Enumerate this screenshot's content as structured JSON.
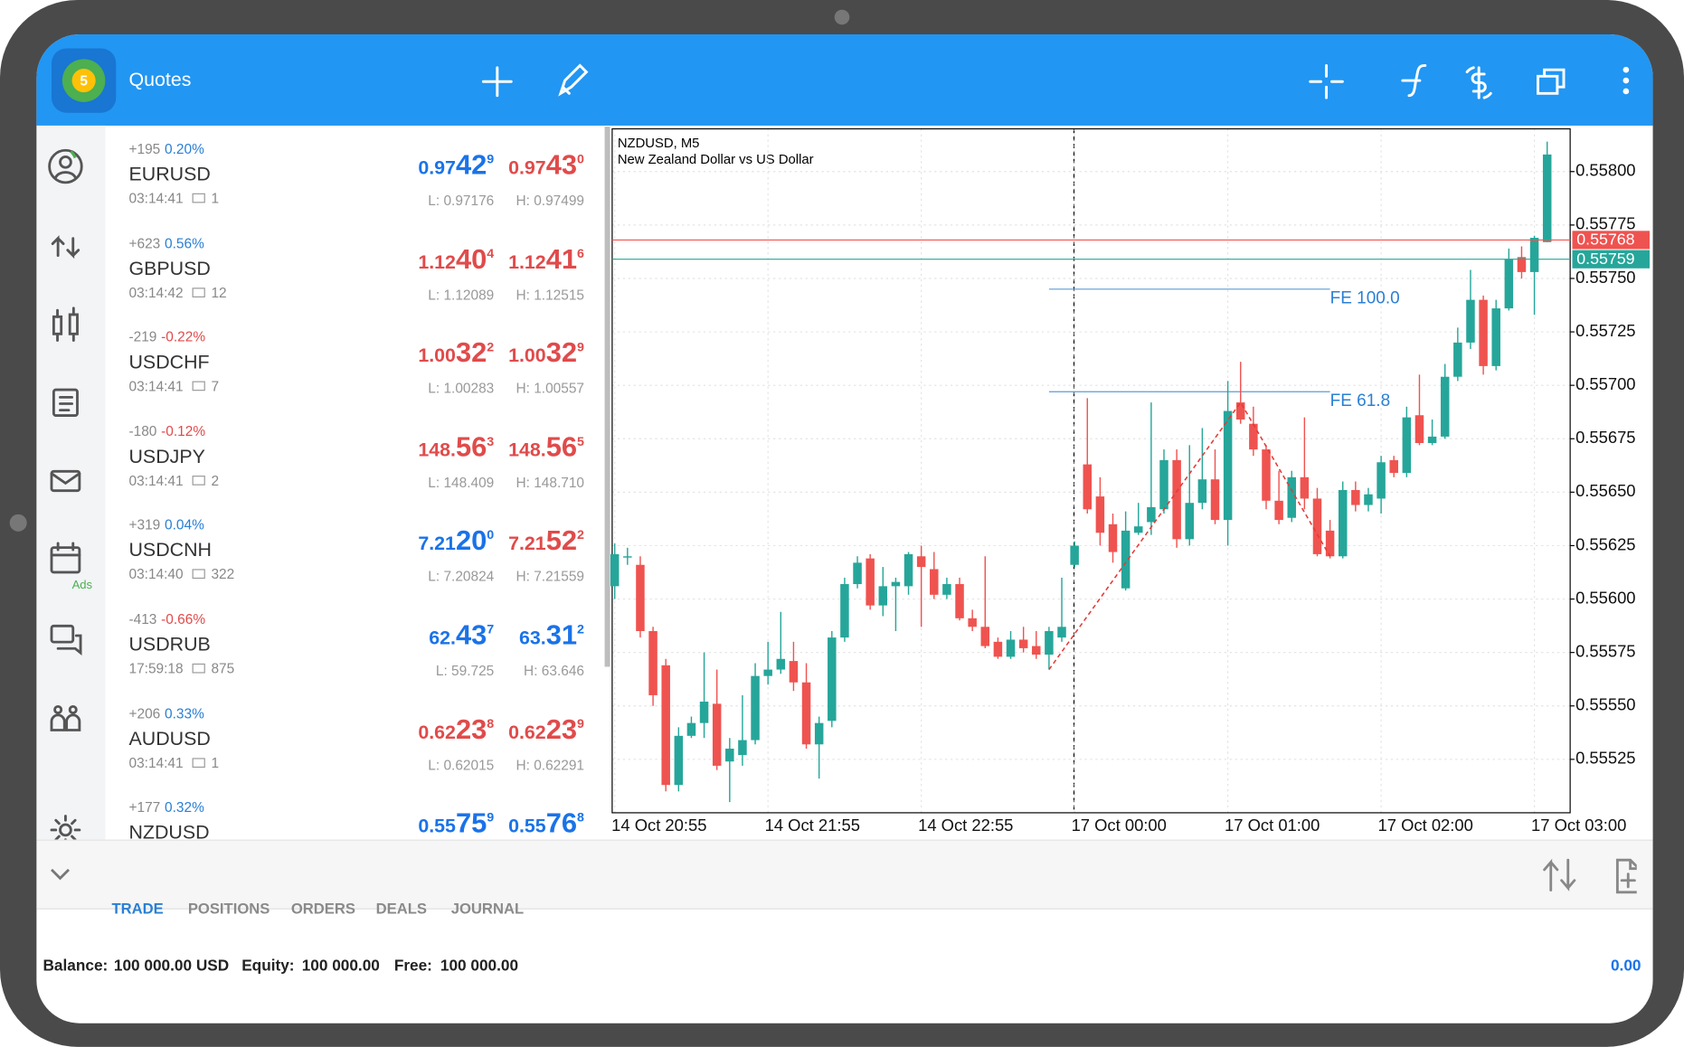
{
  "header": {
    "title": "Quotes"
  },
  "sidebar": {
    "ads": "Ads"
  },
  "quotes": [
    {
      "change_points": "+195",
      "change_percent": "0.20%",
      "change_color": "#2a7fd4",
      "symbol": "EURUSD",
      "time": "03:14:41",
      "ticks": "1",
      "bid": {
        "head": "0.97",
        "big": "42",
        "tail": "9",
        "color": "#1a73e8"
      },
      "ask": {
        "head": "0.97",
        "big": "43",
        "tail": "0",
        "color": "#e04b4b"
      },
      "low": "L: 0.97176",
      "high": "H: 0.97499"
    },
    {
      "change_points": "+623",
      "change_percent": "0.56%",
      "change_color": "#2a7fd4",
      "symbol": "GBPUSD",
      "time": "03:14:42",
      "ticks": "12",
      "bid": {
        "head": "1.12",
        "big": "40",
        "tail": "4",
        "color": "#e04b4b"
      },
      "ask": {
        "head": "1.12",
        "big": "41",
        "tail": "6",
        "color": "#e04b4b"
      },
      "low": "L: 1.12089",
      "high": "H: 1.12515"
    },
    {
      "change_points": "-219",
      "change_percent": "-0.22%",
      "change_color": "#e04b4b",
      "symbol": "USDCHF",
      "time": "03:14:41",
      "ticks": "7",
      "bid": {
        "head": "1.00",
        "big": "32",
        "tail": "2",
        "color": "#e04b4b"
      },
      "ask": {
        "head": "1.00",
        "big": "32",
        "tail": "9",
        "color": "#e04b4b"
      },
      "low": "L: 1.00283",
      "high": "H: 1.00557"
    },
    {
      "change_points": "-180",
      "change_percent": "-0.12%",
      "change_color": "#e04b4b",
      "symbol": "USDJPY",
      "time": "03:14:41",
      "ticks": "2",
      "bid": {
        "head": "148.",
        "big": "56",
        "tail": "3",
        "color": "#e04b4b"
      },
      "ask": {
        "head": "148.",
        "big": "56",
        "tail": "5",
        "color": "#e04b4b"
      },
      "low": "L: 148.409",
      "high": "H: 148.710"
    },
    {
      "change_points": "+319",
      "change_percent": "0.04%",
      "change_color": "#2a7fd4",
      "symbol": "USDCNH",
      "time": "03:14:40",
      "ticks": "322",
      "bid": {
        "head": "7.21",
        "big": "20",
        "tail": "0",
        "color": "#1a73e8"
      },
      "ask": {
        "head": "7.21",
        "big": "52",
        "tail": "2",
        "color": "#e04b4b"
      },
      "low": "L: 7.20824",
      "high": "H: 7.21559"
    },
    {
      "change_points": "-413",
      "change_percent": "-0.66%",
      "change_color": "#e04b4b",
      "symbol": "USDRUB",
      "time": "17:59:18",
      "ticks": "875",
      "bid": {
        "head": "62.",
        "big": "43",
        "tail": "7",
        "color": "#1a73e8"
      },
      "ask": {
        "head": "63.",
        "big": "31",
        "tail": "2",
        "color": "#1a73e8"
      },
      "low": "L: 59.725",
      "high": "H: 63.646"
    },
    {
      "change_points": "+206",
      "change_percent": "0.33%",
      "change_color": "#2a7fd4",
      "symbol": "AUDUSD",
      "time": "03:14:41",
      "ticks": "1",
      "bid": {
        "head": "0.62",
        "big": "23",
        "tail": "8",
        "color": "#e04b4b"
      },
      "ask": {
        "head": "0.62",
        "big": "23",
        "tail": "9",
        "color": "#e04b4b"
      },
      "low": "L: 0.62015",
      "high": "H: 0.62291"
    },
    {
      "change_points": "+177",
      "change_percent": "0.32%",
      "change_color": "#2a7fd4",
      "symbol": "NZDUSD",
      "bid": {
        "head": "0.55",
        "big": "75",
        "tail": "9",
        "color": "#1a73e8"
      },
      "ask": {
        "head": "0.55",
        "big": "76",
        "tail": "8",
        "color": "#1a73e8"
      }
    }
  ],
  "chart_data": {
    "type": "candlestick",
    "title": "NZDUSD, M5",
    "subtitle": "New Zealand Dollar vs US Dollar",
    "categories": [
      "14 Oct 20:55",
      null,
      null,
      null,
      null,
      null,
      null,
      null,
      null,
      null,
      null,
      null,
      "14 Oct 21:55",
      null,
      null,
      null,
      null,
      null,
      null,
      null,
      null,
      null,
      null,
      null,
      "14 Oct 22:55",
      null,
      null,
      null,
      null,
      null,
      null,
      null,
      null,
      null,
      null,
      null,
      "17 Oct 00:00",
      null,
      null,
      null,
      null,
      null,
      null,
      null,
      null,
      null,
      null,
      null,
      "17 Oct 01:00",
      null,
      null,
      null,
      null,
      null,
      null,
      null,
      null,
      null,
      null,
      null,
      "17 Oct 02:00",
      null,
      null,
      null,
      null,
      null,
      null,
      null,
      null,
      null,
      null,
      null,
      "17 Oct 03:00",
      null
    ],
    "open": [
      0.55606,
      0.5562,
      0.55616,
      0.55585,
      0.55569,
      0.55513,
      0.55536,
      0.55542,
      0.55551,
      0.55524,
      0.55527,
      0.55534,
      0.55564,
      0.55567,
      0.55571,
      0.55561,
      0.55532,
      0.55543,
      0.55582,
      0.55607,
      0.55619,
      0.55597,
      0.55606,
      0.55606,
      0.5562,
      0.55614,
      0.55602,
      0.55607,
      0.55591,
      0.55587,
      0.5558,
      0.55573,
      0.55581,
      0.55578,
      0.55574,
      0.55582,
      0.55616,
      0.55663,
      0.55648,
      0.55635,
      0.55605,
      0.55631,
      0.55636,
      0.55642,
      0.55665,
      0.55628,
      0.55645,
      0.55656,
      0.55637,
      0.55692,
      0.55682,
      0.5567,
      0.55646,
      0.55638,
      0.55657,
      0.55647,
      0.55632,
      0.5562,
      0.55651,
      0.55644,
      0.55647,
      0.55665,
      0.55659,
      0.55686,
      0.55673,
      0.55676,
      0.55704,
      0.5572,
      0.5574,
      0.55709,
      0.55736,
      0.5576,
      0.55753,
      0.55767
    ],
    "high": [
      0.55626,
      0.55624,
      0.5562,
      0.55587,
      0.55572,
      0.5554,
      0.55545,
      0.55575,
      0.55567,
      0.55535,
      0.55555,
      0.5557,
      0.5558,
      0.55594,
      0.5558,
      0.5557,
      0.55545,
      0.55585,
      0.5561,
      0.5562,
      0.55621,
      0.55615,
      0.5561,
      0.55622,
      0.55625,
      0.55622,
      0.5561,
      0.5561,
      0.55595,
      0.5562,
      0.55582,
      0.55585,
      0.55587,
      0.55585,
      0.55587,
      0.5561,
      0.55627,
      0.55694,
      0.55657,
      0.5564,
      0.55641,
      0.55645,
      0.55692,
      0.5567,
      0.5567,
      0.55672,
      0.5568,
      0.5567,
      0.55702,
      0.55711,
      0.5569,
      0.55672,
      0.5566,
      0.5566,
      0.55685,
      0.55652,
      0.55637,
      0.55655,
      0.55655,
      0.55652,
      0.55667,
      0.55667,
      0.5569,
      0.55705,
      0.55684,
      0.5571,
      0.55727,
      0.55754,
      0.55742,
      0.5574,
      0.55764,
      0.55765,
      0.5577,
      0.55814
    ],
    "low": [
      0.556,
      0.55616,
      0.55582,
      0.5555,
      0.5551,
      0.5551,
      0.55535,
      0.55535,
      0.5552,
      0.55505,
      0.55522,
      0.55532,
      0.5556,
      0.55565,
      0.55557,
      0.5553,
      0.55516,
      0.5554,
      0.5558,
      0.55605,
      0.55595,
      0.55592,
      0.55585,
      0.55602,
      0.55587,
      0.556,
      0.556,
      0.5559,
      0.55585,
      0.55577,
      0.55572,
      0.55572,
      0.55575,
      0.55572,
      0.55567,
      0.5558,
      0.55615,
      0.5564,
      0.55625,
      0.55617,
      0.55604,
      0.5563,
      0.5563,
      0.5564,
      0.55624,
      0.55625,
      0.55642,
      0.55635,
      0.55625,
      0.55682,
      0.55667,
      0.55642,
      0.55635,
      0.55636,
      0.55642,
      0.5562,
      0.55619,
      0.55619,
      0.55641,
      0.55641,
      0.5564,
      0.55657,
      0.55657,
      0.55672,
      0.55672,
      0.55675,
      0.55702,
      0.55717,
      0.55705,
      0.55707,
      0.55735,
      0.5575,
      0.55733,
      0.55767
    ],
    "close": [
      0.55621,
      0.5562,
      0.55585,
      0.55555,
      0.55513,
      0.55536,
      0.55542,
      0.55552,
      0.55522,
      0.5553,
      0.55534,
      0.55564,
      0.55567,
      0.55572,
      0.55561,
      0.55532,
      0.55542,
      0.55582,
      0.55607,
      0.55617,
      0.55597,
      0.55606,
      0.55608,
      0.55621,
      0.55615,
      0.55602,
      0.55607,
      0.55591,
      0.55587,
      0.55578,
      0.55573,
      0.55581,
      0.55577,
      0.55574,
      0.55585,
      0.55587,
      0.55625,
      0.55642,
      0.55631,
      0.55622,
      0.55632,
      0.55634,
      0.55643,
      0.55665,
      0.55628,
      0.55645,
      0.55656,
      0.55637,
      0.55688,
      0.55684,
      0.5567,
      0.55646,
      0.55637,
      0.55657,
      0.55647,
      0.55621,
      0.5562,
      0.55651,
      0.55644,
      0.55649,
      0.55664,
      0.55659,
      0.55685,
      0.55673,
      0.55676,
      0.55704,
      0.5572,
      0.5574,
      0.55709,
      0.55736,
      0.55759,
      0.55753,
      0.55769,
      0.55808
    ],
    "up_color": "#26a69a",
    "down_color": "#ef5350",
    "ylim": [
      0.555,
      0.5582
    ],
    "yticks": [
      0.55525,
      {
        "value": 0.5555,
        "label": "0.55550"
      },
      0.55575,
      {
        "value": 0.556,
        "label": "0.55600"
      },
      0.55625,
      {
        "value": 0.5565,
        "label": "0.55650"
      },
      0.55675,
      {
        "value": 0.557,
        "label": "0.55700"
      },
      0.55725,
      {
        "value": 0.5575,
        "label": "0.55750"
      },
      0.55775,
      {
        "value": 0.558,
        "label": "0.55800"
      }
    ],
    "grid": true,
    "price_lines": [
      {
        "value": 0.55768,
        "color": "#ef5350"
      },
      {
        "value": 0.55759,
        "color": "#26a69a"
      }
    ],
    "zigzag": {
      "color": "#e53935",
      "points": [
        {
          "index": 34,
          "value": 0.55567
        },
        {
          "index": 49,
          "value": 0.55692
        },
        {
          "index": 56,
          "value": 0.5562
        }
      ]
    },
    "fibonacci": {
      "color": "#5b9bd5",
      "text_color": "#2a7fd4",
      "levels": [
        {
          "label": "FE 100.0",
          "value": 0.55745
        },
        {
          "label": "FE 61.8",
          "value": 0.55697
        }
      ]
    }
  },
  "tabs": [
    "TRADE",
    "POSITIONS",
    "ORDERS",
    "DEALS",
    "JOURNAL"
  ],
  "account": {
    "balance_label": "Balance:",
    "balance": "100 000.00 USD",
    "equity_label": "Equity:",
    "equity": "100 000.00",
    "free_label": "Free:",
    "free": "100 000.00",
    "profit": "0.00"
  }
}
